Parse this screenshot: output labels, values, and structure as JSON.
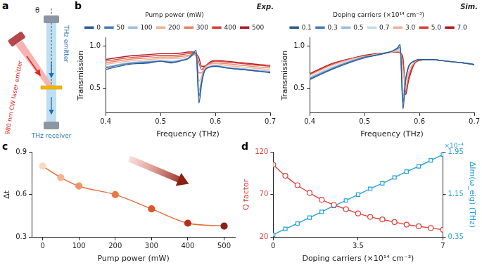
{
  "diagram": {
    "panel": "a",
    "laser": "980 nm CW laser emitter",
    "emitter": "THz emitter",
    "receiver": "THz receiver",
    "angle": "θ"
  },
  "chart_data": [
    {
      "panel": "b",
      "type": "line",
      "title": "Exp.",
      "xlabel": "Frequency (THz)",
      "ylabel": "Transmission",
      "zlabel": "Pump power (mW)",
      "x": [
        0.4,
        0.44,
        0.48,
        0.5,
        0.52,
        0.54,
        0.55,
        0.56,
        0.565,
        0.57,
        0.575,
        0.58,
        0.59,
        0.6,
        0.62,
        0.65,
        0.68,
        0.7
      ],
      "xlim": [
        0.4,
        0.7
      ],
      "xticks": [
        0.4,
        0.5,
        0.6,
        0.7
      ],
      "ylim": [
        0.2,
        1.1
      ],
      "yticks": [
        0.5,
        {
          "value": 1,
          "label": "1.0"
        }
      ],
      "grid": false,
      "legend": "top",
      "marker": "none",
      "series": [
        {
          "name": "0",
          "color": "#2c5d95",
          "values": [
            0.72,
            0.78,
            0.8,
            0.82,
            0.8,
            0.83,
            0.85,
            0.92,
            0.95,
            0.32,
            0.55,
            0.7,
            0.75,
            0.76,
            0.74,
            0.72,
            0.7,
            0.68
          ]
        },
        {
          "name": "50",
          "color": "#4a7db5",
          "values": [
            0.74,
            0.79,
            0.81,
            0.82,
            0.81,
            0.83,
            0.85,
            0.9,
            0.92,
            0.4,
            0.58,
            0.7,
            0.75,
            0.76,
            0.74,
            0.72,
            0.7,
            0.69
          ]
        },
        {
          "name": "100",
          "color": "#9dbedb",
          "values": [
            0.75,
            0.8,
            0.82,
            0.83,
            0.82,
            0.84,
            0.86,
            0.9,
            0.91,
            0.47,
            0.6,
            0.71,
            0.76,
            0.77,
            0.75,
            0.73,
            0.71,
            0.7
          ]
        },
        {
          "name": "200",
          "color": "#f2b29b",
          "values": [
            0.78,
            0.82,
            0.84,
            0.85,
            0.85,
            0.86,
            0.88,
            0.9,
            0.9,
            0.58,
            0.64,
            0.73,
            0.78,
            0.79,
            0.77,
            0.75,
            0.73,
            0.72
          ]
        },
        {
          "name": "300",
          "color": "#e8826a",
          "values": [
            0.8,
            0.84,
            0.86,
            0.87,
            0.87,
            0.88,
            0.89,
            0.9,
            0.88,
            0.68,
            0.68,
            0.74,
            0.79,
            0.8,
            0.79,
            0.77,
            0.75,
            0.74
          ]
        },
        {
          "name": "400",
          "color": "#d6453a",
          "values": [
            0.82,
            0.86,
            0.88,
            0.89,
            0.89,
            0.9,
            0.91,
            0.91,
            0.89,
            0.8,
            0.72,
            0.75,
            0.8,
            0.82,
            0.81,
            0.79,
            0.77,
            0.76
          ]
        },
        {
          "name": "500",
          "color": "#b01c24",
          "values": [
            0.84,
            0.88,
            0.9,
            0.91,
            0.91,
            0.92,
            0.93,
            0.93,
            0.91,
            0.86,
            0.76,
            0.76,
            0.81,
            0.83,
            0.82,
            0.8,
            0.78,
            0.77
          ]
        }
      ]
    },
    {
      "type": "line",
      "title": "Sim.",
      "xlabel": "Frequency (THz)",
      "ylabel": "Transmission",
      "zlabel": "Doping carriers (×10¹⁴ cm⁻³)",
      "x": [
        0.4,
        0.44,
        0.48,
        0.5,
        0.52,
        0.54,
        0.55,
        0.56,
        0.565,
        0.57,
        0.575,
        0.58,
        0.59,
        0.6,
        0.62,
        0.65,
        0.68,
        0.7
      ],
      "xlim": [
        0.4,
        0.7
      ],
      "xticks": [
        0.4,
        0.5,
        0.6,
        0.7
      ],
      "ylim": [
        0.2,
        1.1
      ],
      "yticks": [
        0.5,
        {
          "value": 1,
          "label": "1.0"
        }
      ],
      "grid": false,
      "legend": "top",
      "marker": "none",
      "series": [
        {
          "name": "0.1",
          "color": "#2c5d95",
          "values": [
            0.6,
            0.72,
            0.82,
            0.86,
            0.89,
            0.92,
            0.94,
            0.98,
            1.02,
            0.25,
            0.6,
            0.75,
            0.82,
            0.84,
            0.84,
            0.82,
            0.8,
            0.78
          ]
        },
        {
          "name": "0.3",
          "color": "#4a7db5",
          "values": [
            0.61,
            0.73,
            0.83,
            0.87,
            0.89,
            0.92,
            0.94,
            0.97,
            0.99,
            0.33,
            0.6,
            0.75,
            0.82,
            0.84,
            0.84,
            0.82,
            0.8,
            0.78
          ]
        },
        {
          "name": "0.5",
          "color": "#9dbedb",
          "values": [
            0.62,
            0.74,
            0.83,
            0.87,
            0.9,
            0.92,
            0.94,
            0.96,
            0.97,
            0.4,
            0.59,
            0.75,
            0.82,
            0.84,
            0.84,
            0.82,
            0.8,
            0.78
          ]
        },
        {
          "name": "0.7",
          "color": "#c8dcea",
          "values": [
            0.63,
            0.75,
            0.84,
            0.87,
            0.9,
            0.92,
            0.94,
            0.95,
            0.95,
            0.46,
            0.58,
            0.74,
            0.82,
            0.84,
            0.84,
            0.82,
            0.8,
            0.78
          ]
        },
        {
          "name": "3.0",
          "color": "#f2b29b",
          "values": [
            0.65,
            0.77,
            0.85,
            0.88,
            0.9,
            0.92,
            0.93,
            0.94,
            0.93,
            0.72,
            0.5,
            0.68,
            0.8,
            0.84,
            0.84,
            0.82,
            0.8,
            0.78
          ]
        },
        {
          "name": "5.0",
          "color": "#d6453a",
          "values": [
            0.66,
            0.78,
            0.86,
            0.88,
            0.9,
            0.92,
            0.93,
            0.93,
            0.92,
            0.82,
            0.45,
            0.62,
            0.79,
            0.83,
            0.84,
            0.82,
            0.8,
            0.78
          ]
        },
        {
          "name": "7.0",
          "color": "#b01c24",
          "values": [
            0.67,
            0.79,
            0.86,
            0.89,
            0.91,
            0.92,
            0.93,
            0.93,
            0.92,
            0.86,
            0.42,
            0.58,
            0.78,
            0.83,
            0.84,
            0.82,
            0.8,
            0.78
          ]
        }
      ]
    },
    {
      "panel": "c",
      "type": "line",
      "xlabel": "Pump power (mW)",
      "ylabel": "Δt",
      "x": [
        0,
        50,
        100,
        200,
        300,
        400,
        500
      ],
      "xlim": [
        -30,
        530
      ],
      "xticks": [
        0,
        100,
        200,
        300,
        400,
        500
      ],
      "ylim": [
        0.3,
        0.9
      ],
      "yticks": [
        0.3,
        0.6,
        0.9
      ],
      "grid": false,
      "marker": "circle",
      "series": [
        {
          "color": "#e36b3a",
          "colors": [
            "#f7d9c4",
            "#f3b48f",
            "#ee9668",
            "#e37a45",
            "#d9582a",
            "#b5301c",
            "#8a1f12"
          ],
          "values": [
            0.8,
            0.72,
            0.66,
            0.6,
            0.5,
            0.4,
            0.38
          ]
        }
      ]
    },
    {
      "panel": "d",
      "type": "line",
      "xlabel": "Doping carriers (×10¹⁴ cm⁻³)",
      "ylabel": "Q factor",
      "y2label": "ΔIm(ω_eig) (THz)",
      "y2_multiplier": "×10⁻⁴",
      "x": [
        0,
        0.5,
        1,
        1.5,
        2,
        2.5,
        3,
        3.5,
        4,
        4.5,
        5,
        5.5,
        6,
        6.5,
        7
      ],
      "xlim": [
        0,
        7
      ],
      "xticks": [
        0,
        3.5,
        7
      ],
      "ylim": [
        20,
        120
      ],
      "yticks": [
        20,
        70,
        120
      ],
      "y2lim": [
        0.35,
        1.95
      ],
      "y2ticks": [
        0.35,
        1.15,
        1.95
      ],
      "grid": false,
      "series": [
        {
          "color": "#e0403a",
          "marker": "circle",
          "values": [
            105,
            92,
            81,
            72,
            64,
            58,
            53,
            48,
            44,
            41,
            38,
            35,
            33,
            31,
            29
          ]
        },
        {
          "color": "#2a9fd6",
          "marker": "square",
          "axis": "y2",
          "values": [
            0.4,
            0.51,
            0.61,
            0.72,
            0.83,
            0.94,
            1.04,
            1.15,
            1.26,
            1.36,
            1.47,
            1.58,
            1.68,
            1.79,
            1.9
          ]
        }
      ]
    }
  ]
}
